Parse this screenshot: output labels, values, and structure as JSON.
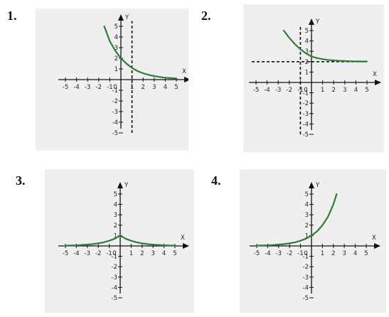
{
  "panels": [
    {
      "number": "1."
    },
    {
      "number": "2."
    },
    {
      "number": "3."
    },
    {
      "number": "4."
    }
  ],
  "chart_data": [
    {
      "type": "line",
      "xlabel": "X",
      "ylabel": "Y",
      "xlim": [
        -5,
        5
      ],
      "ylim": [
        -5,
        5
      ],
      "xticks": [
        "-5",
        "-4",
        "-3",
        "-2",
        "-1",
        "0",
        "1",
        "2",
        "3",
        "4",
        "5"
      ],
      "yticks": [
        "-5",
        "-4",
        "-3",
        "-2",
        "-1",
        "1",
        "2",
        "3",
        "4",
        "5"
      ],
      "series_color": "#2e7d32",
      "series": [
        {
          "x": [
            -1.5,
            -1,
            -0.5,
            0,
            0.5,
            1,
            1.5,
            2,
            2.5,
            3,
            3.5,
            4,
            4.5,
            5
          ],
          "y": [
            5.0,
            3.6,
            2.7,
            2.0,
            1.5,
            1.1,
            0.8,
            0.6,
            0.45,
            0.33,
            0.25,
            0.18,
            0.14,
            0.1
          ]
        }
      ],
      "guides": [
        {
          "orientation": "vertical",
          "value": 1,
          "from": -5,
          "to": 5.5
        }
      ]
    },
    {
      "type": "line",
      "xlabel": "X",
      "ylabel": "Y",
      "xlim": [
        -5,
        5
      ],
      "ylim": [
        -5,
        5
      ],
      "xticks": [
        "-5",
        "-4",
        "-3",
        "-2",
        "-1",
        "0",
        "1",
        "2",
        "3",
        "4",
        "5"
      ],
      "yticks": [
        "-5",
        "-4",
        "-3",
        "-2",
        "-1",
        "1",
        "2",
        "3",
        "4",
        "5"
      ],
      "series_color": "#2e7d32",
      "series": [
        {
          "x": [
            -2.5,
            -2,
            -1.5,
            -1,
            -0.5,
            0,
            0.5,
            1,
            1.5,
            2,
            2.5,
            3,
            3.5,
            4,
            4.5,
            5
          ],
          "y": [
            5.0,
            4.3,
            3.7,
            3.2,
            2.8,
            2.5,
            2.35,
            2.25,
            2.17,
            2.12,
            2.08,
            2.06,
            2.04,
            2.03,
            2.02,
            2.02
          ]
        }
      ],
      "guides": [
        {
          "orientation": "vertical",
          "value": -1,
          "from": -5,
          "to": 5.5
        },
        {
          "orientation": "horizontal",
          "value": 2,
          "from": -5,
          "to": 5
        }
      ]
    },
    {
      "type": "line",
      "xlabel": "X",
      "ylabel": "Y",
      "xlim": [
        -5,
        5
      ],
      "ylim": [
        -5,
        5
      ],
      "xticks": [
        "-5",
        "-4",
        "-3",
        "-2",
        "-1",
        "0",
        "1",
        "2",
        "3",
        "4",
        "5"
      ],
      "yticks": [
        "-5",
        "-4",
        "-3",
        "-2",
        "-1",
        "1",
        "2",
        "3",
        "4",
        "5"
      ],
      "series_color": "#2e7d32",
      "series": [
        {
          "x": [
            -5,
            -4,
            -3,
            -2.5,
            -2,
            -1.5,
            -1,
            -0.5,
            0,
            0.5,
            1,
            1.5,
            2,
            2.5,
            3,
            4,
            5
          ],
          "y": [
            0.03,
            0.06,
            0.12,
            0.18,
            0.25,
            0.35,
            0.5,
            0.7,
            1.0,
            0.7,
            0.5,
            0.35,
            0.25,
            0.18,
            0.12,
            0.06,
            0.03
          ]
        }
      ],
      "guides": []
    },
    {
      "type": "line",
      "xlabel": "X",
      "ylabel": "Y",
      "xlim": [
        -5,
        5
      ],
      "ylim": [
        -5,
        5
      ],
      "xticks": [
        "-5",
        "-4",
        "-3",
        "-2",
        "-1",
        "0",
        "1",
        "2",
        "3",
        "4",
        "5"
      ],
      "yticks": [
        "-5",
        "-4",
        "-3",
        "-2",
        "-1",
        "1",
        "2",
        "3",
        "4",
        "5"
      ],
      "series_color": "#2e7d32",
      "series": [
        {
          "x": [
            -5,
            -4.5,
            -4,
            -3.5,
            -3,
            -2.5,
            -2,
            -1.5,
            -1,
            -0.5,
            0,
            0.5,
            1,
            1.5,
            2,
            2.3
          ],
          "y": [
            0.03,
            0.05,
            0.06,
            0.09,
            0.13,
            0.18,
            0.25,
            0.35,
            0.5,
            0.7,
            1.0,
            1.4,
            2.0,
            2.8,
            4.0,
            5.0
          ]
        }
      ],
      "guides": []
    }
  ]
}
